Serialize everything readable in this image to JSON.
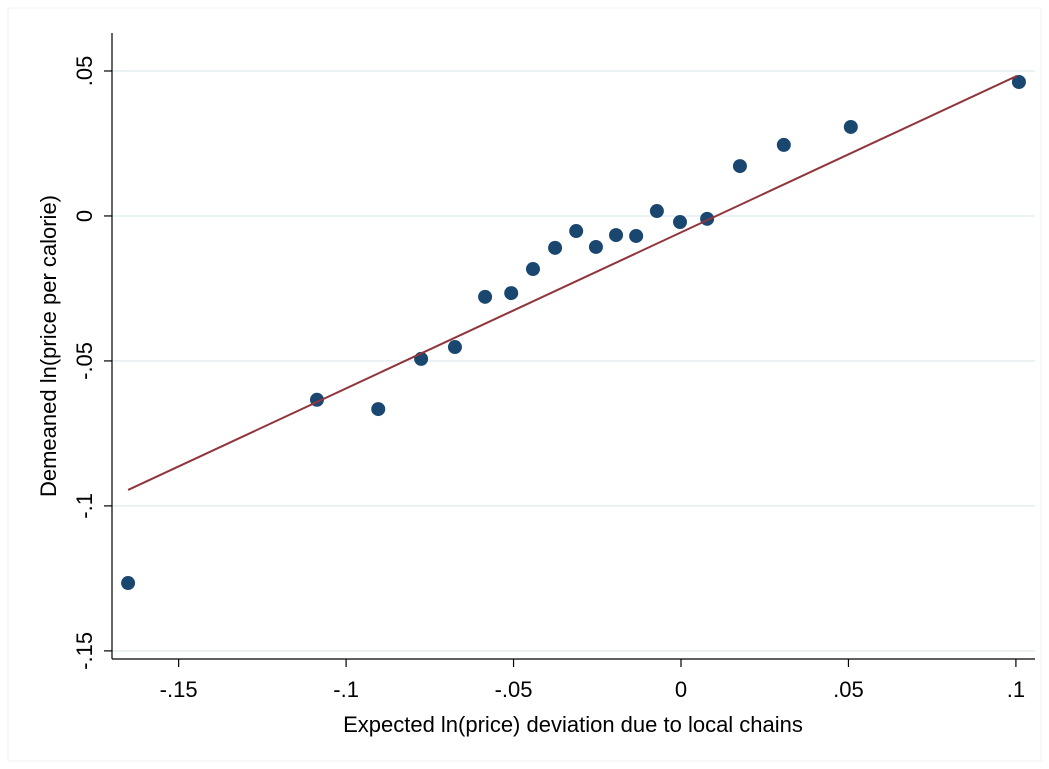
{
  "chart_data": {
    "type": "scatter",
    "xlabel": "Expected ln(price) deviation due to local chains",
    "ylabel": "Demeaned ln(price per calorie)",
    "xlim": [
      -0.1699,
      0.1057
    ],
    "ylim": [
      -0.1528,
      0.0631
    ],
    "xticks": [
      {
        "value": -0.15,
        "label": "-.15"
      },
      {
        "value": -0.1,
        "label": "-.1"
      },
      {
        "value": -0.05,
        "label": "-.05"
      },
      0,
      {
        "value": 0.05,
        "label": ".05"
      },
      {
        "value": 0.1,
        "label": ".1"
      }
    ],
    "yticks": [
      {
        "value": -0.15,
        "label": "-.15"
      },
      {
        "value": -0.1,
        "label": "-.1"
      },
      {
        "value": -0.05,
        "label": "-.05"
      },
      0,
      {
        "value": 0.05,
        "label": ".05"
      }
    ],
    "grid": true,
    "series": [
      {
        "color": "#1a476f",
        "x": [
          -0.1651,
          -0.1087,
          -0.0904,
          -0.0776,
          -0.0675,
          -0.0585,
          -0.0507,
          -0.0442,
          -0.0376,
          -0.0313,
          -0.0254,
          -0.0194,
          -0.0134,
          -0.0072,
          -0.0003,
          0.0078,
          0.0176,
          0.0307,
          0.0507,
          0.1009
        ],
        "values": [
          -0.1266,
          -0.0634,
          -0.0666,
          -0.0493,
          -0.0452,
          -0.0279,
          -0.0266,
          -0.0183,
          -0.011,
          -0.0052,
          -0.0107,
          -0.0066,
          -0.0069,
          0.0017,
          -0.0021,
          -0.001,
          0.0172,
          0.0245,
          0.0307,
          0.0462
        ]
      },
      {
        "type": "line",
        "color": "#90353b",
        "x": [
          -0.1651,
          0.1003
        ],
        "values": [
          -0.0945,
          0.0483
        ]
      }
    ]
  }
}
